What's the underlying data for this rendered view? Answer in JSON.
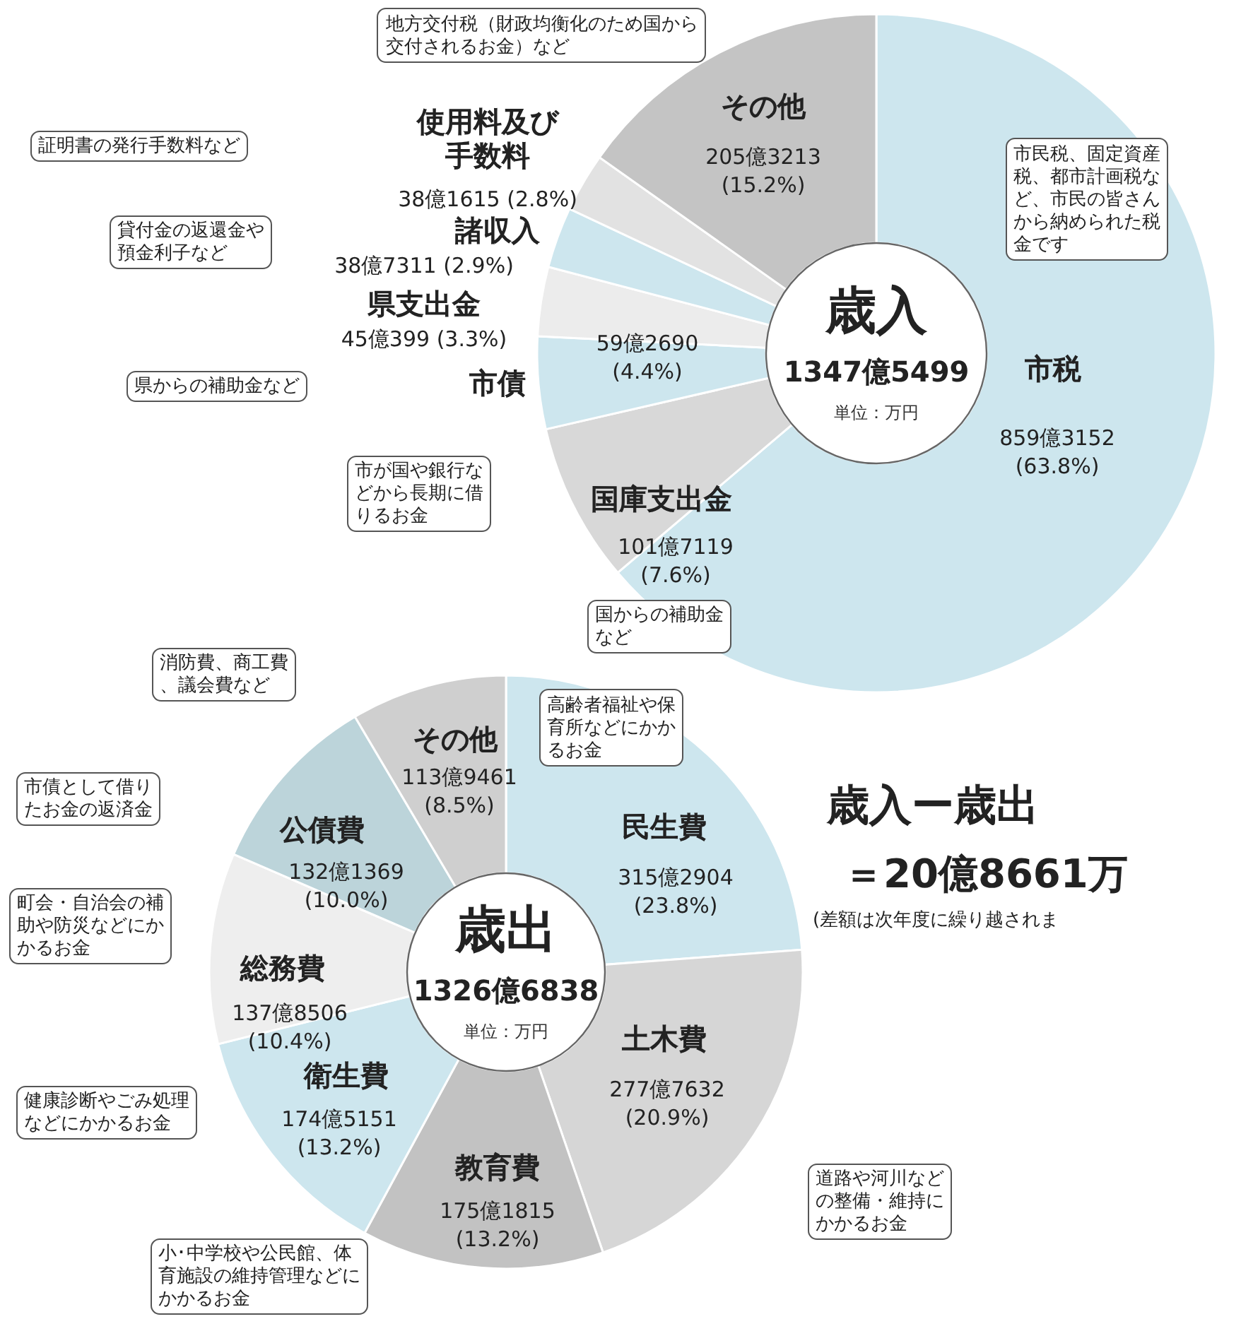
{
  "chart_data": [
    {
      "type": "donut",
      "title": "歳入",
      "subtitle": "1347億5499",
      "categories": [
        "市税",
        "国庫支出金",
        "市債",
        "県支出金",
        "諸収入",
        "使用料及び手数料",
        "その他"
      ],
      "values": [
        63.8,
        7.6,
        4.4,
        3.3,
        2.9,
        2.8,
        15.2
      ],
      "value_labels": [
        "859億3152 (63.8%)",
        "101億7119 (7.6%)",
        "59億2690 (4.4%)",
        "45億399 (3.3%)",
        "38億7311 (2.9%)",
        "38億1615 (2.8%)",
        "205億3213 (15.2%)"
      ],
      "colors": [
        "#cde6ee",
        "#d8d8d8",
        "#cde6ee",
        "#ececec",
        "#cde6ee",
        "#e2e2e2",
        "#c4c4c4"
      ],
      "annotations": [
        "地方交付税（財政均衡化のため国から交付されるお金）など",
        "証明書の発行手数料など",
        "貸付金の返還金や預金利子など",
        "県からの補助金など",
        "市が国や銀行などから長期に借りるお金",
        "国からの補助金など",
        "市民税、固定資産税、都市計画税など、市民の皆さんから納められた税金です",
        "単位：万円"
      ]
    },
    {
      "type": "donut",
      "title": "歳出",
      "subtitle": "1326億6838",
      "categories": [
        "民生費",
        "土木費",
        "教育費",
        "衛生費",
        "総務費",
        "公債費",
        "その他"
      ],
      "values": [
        23.8,
        20.9,
        13.2,
        13.2,
        10.4,
        10.0,
        8.5
      ],
      "value_labels": [
        "315億2904 (23.8%)",
        "277億7632 (20.9%)",
        "175億1815 (13.2%)",
        "174億5151 (13.2%)",
        "137億8506 (10.4%)",
        "132億1369 (10.0%)",
        "113億9461 (8.5%)"
      ],
      "colors": [
        "#cde6ee",
        "#d6d6d6",
        "#c2c2c2",
        "#cde6ee",
        "#eeeeee",
        "#bcd4da",
        "#cfcfcf"
      ],
      "annotations": [
        "消防費、商工費、議会費など",
        "市債として借りたお金の返済金",
        "町会・自治会の補助や防災などにかかるお金",
        "健康診断やごみ処理などにかかるお金",
        "小･中学校や公民館、体育施設の維持管理などにかかるお金",
        "道路や河川などの整備・維持にかかるお金",
        "高齢者福祉や保育所などにかかるお金",
        "単位：万円",
        "歳入ー歳出",
        "＝20億8661万",
        "(差額は次年度に繰り越されま"
      ]
    }
  ]
}
